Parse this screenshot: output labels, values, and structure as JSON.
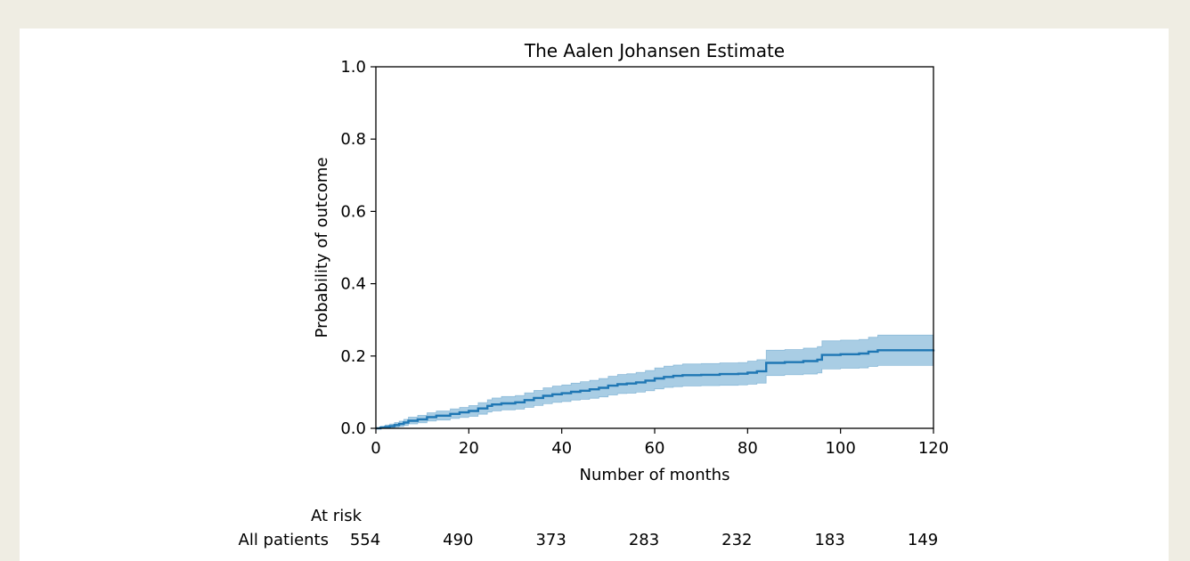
{
  "chart_data": {
    "type": "line",
    "title": "The Aalen Johansen Estimate",
    "xlabel": "Number of months",
    "ylabel": "Probability of outcome",
    "xlim": [
      0,
      120
    ],
    "ylim": [
      0,
      1.0
    ],
    "xticks": [
      0,
      20,
      40,
      60,
      80,
      100,
      120
    ],
    "yticks": [
      0.0,
      0.2,
      0.4,
      0.6,
      0.8,
      1.0
    ],
    "grid": false,
    "legend": "none",
    "line_color": "#1f77b4",
    "band_color": "#a9cde4",
    "series": [
      {
        "step": "post",
        "x": [
          0,
          1,
          2,
          3,
          4,
          5,
          6,
          7,
          9,
          11,
          13,
          16,
          18,
          20,
          22,
          24,
          25,
          27,
          30,
          32,
          34,
          36,
          38,
          40,
          42,
          44,
          46,
          48,
          50,
          52,
          54,
          56,
          58,
          60,
          62,
          64,
          66,
          70,
          74,
          78,
          80,
          82,
          84,
          88,
          92,
          95,
          96,
          100,
          104,
          106,
          108,
          120
        ],
        "y": [
          0,
          0.002,
          0.004,
          0.006,
          0.009,
          0.012,
          0.016,
          0.021,
          0.025,
          0.031,
          0.035,
          0.04,
          0.044,
          0.048,
          0.055,
          0.062,
          0.066,
          0.069,
          0.072,
          0.078,
          0.084,
          0.09,
          0.094,
          0.097,
          0.101,
          0.104,
          0.108,
          0.112,
          0.118,
          0.122,
          0.124,
          0.127,
          0.132,
          0.138,
          0.142,
          0.145,
          0.147,
          0.148,
          0.15,
          0.151,
          0.154,
          0.158,
          0.181,
          0.183,
          0.186,
          0.19,
          0.203,
          0.205,
          0.207,
          0.212,
          0.216,
          0.218
        ],
        "lower": [
          0,
          0,
          0,
          0.001,
          0.003,
          0.005,
          0.008,
          0.012,
          0.015,
          0.02,
          0.023,
          0.027,
          0.03,
          0.033,
          0.039,
          0.045,
          0.048,
          0.051,
          0.053,
          0.058,
          0.063,
          0.068,
          0.072,
          0.074,
          0.078,
          0.08,
          0.083,
          0.087,
          0.092,
          0.096,
          0.097,
          0.1,
          0.104,
          0.109,
          0.113,
          0.115,
          0.117,
          0.118,
          0.119,
          0.12,
          0.122,
          0.125,
          0.146,
          0.148,
          0.15,
          0.153,
          0.164,
          0.166,
          0.167,
          0.171,
          0.174,
          0.176
        ],
        "upper": [
          0,
          0.006,
          0.009,
          0.012,
          0.016,
          0.02,
          0.025,
          0.031,
          0.036,
          0.043,
          0.048,
          0.054,
          0.058,
          0.063,
          0.071,
          0.079,
          0.084,
          0.088,
          0.091,
          0.098,
          0.105,
          0.112,
          0.117,
          0.12,
          0.125,
          0.129,
          0.133,
          0.138,
          0.144,
          0.149,
          0.151,
          0.155,
          0.16,
          0.167,
          0.172,
          0.175,
          0.178,
          0.179,
          0.181,
          0.182,
          0.186,
          0.19,
          0.216,
          0.218,
          0.222,
          0.226,
          0.242,
          0.244,
          0.246,
          0.252,
          0.258,
          0.262
        ]
      }
    ]
  },
  "risk_table": {
    "header": "At risk",
    "row_label": "All patients",
    "times": [
      0,
      20,
      40,
      60,
      80,
      100,
      120
    ],
    "counts": [
      "554",
      "490",
      "373",
      "283",
      "232",
      "183",
      "149"
    ]
  }
}
